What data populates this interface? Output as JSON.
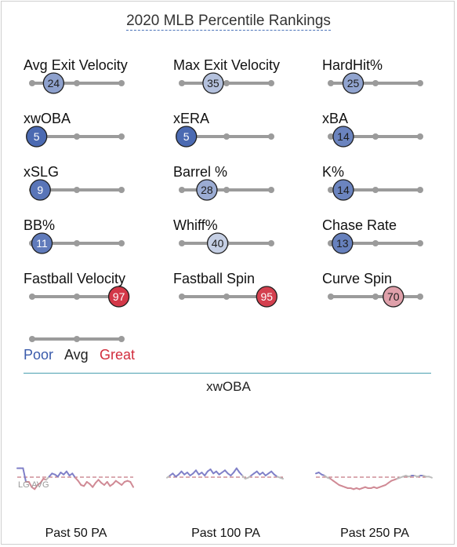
{
  "title": "2020 MLB Percentile Rankings",
  "colors": {
    "track": "#9b9b9b",
    "poor": "#3a5bab",
    "avg": "#222222",
    "great": "#d22d3d",
    "lg_avg_line": "#b45563",
    "spark_above": "#8080c8",
    "spark_below": "#d08a95",
    "spark_neutral": "#bdbdbd"
  },
  "chart_data": [
    {
      "type": "percentile-slider",
      "title": "2020 MLB Percentile Rankings",
      "scale": [
        0,
        100
      ],
      "metrics": [
        {
          "label": "Avg Exit Velocity",
          "value": 24
        },
        {
          "label": "Max Exit Velocity",
          "value": 35
        },
        {
          "label": "HardHit%",
          "value": 25
        },
        {
          "label": "xwOBA",
          "value": 5
        },
        {
          "label": "xERA",
          "value": 5
        },
        {
          "label": "xBA",
          "value": 14
        },
        {
          "label": "xSLG",
          "value": 9
        },
        {
          "label": "Barrel %",
          "value": 28
        },
        {
          "label": "K%",
          "value": 14
        },
        {
          "label": "BB%",
          "value": 11
        },
        {
          "label": "Whiff%",
          "value": 40
        },
        {
          "label": "Chase Rate",
          "value": 13
        },
        {
          "label": "Fastball Velocity",
          "value": 97
        },
        {
          "label": "Fastball Spin",
          "value": 95
        },
        {
          "label": "Curve Spin",
          "value": 70
        }
      ],
      "legend": {
        "poor": "Poor",
        "avg": "Avg",
        "great": "Great"
      }
    },
    {
      "type": "line",
      "title": "xwOBA",
      "reference_label": "LG AVG",
      "panels": [
        {
          "label": "Past 50 PA",
          "values": [
            0.4,
            0.4,
            0.4,
            0.27,
            0.27,
            0.22,
            0.2,
            0.24,
            0.26,
            0.3,
            0.29,
            0.32,
            0.35,
            0.34,
            0.32,
            0.36,
            0.34,
            0.37,
            0.33,
            0.35,
            0.31,
            0.28,
            0.24,
            0.23,
            0.27,
            0.25,
            0.22,
            0.26,
            0.29,
            0.26,
            0.24,
            0.27,
            0.23,
            0.25,
            0.28,
            0.26,
            0.24,
            0.27,
            0.28,
            0.27,
            0.22
          ]
        },
        {
          "label": "Past 100 PA",
          "values": [
            0.31,
            0.33,
            0.35,
            0.32,
            0.34,
            0.37,
            0.34,
            0.36,
            0.33,
            0.35,
            0.38,
            0.34,
            0.36,
            0.33,
            0.37,
            0.39,
            0.35,
            0.37,
            0.34,
            0.36,
            0.38,
            0.35,
            0.33,
            0.36,
            0.4,
            0.36,
            0.33,
            0.3,
            0.31,
            0.33,
            0.35,
            0.37,
            0.34,
            0.36,
            0.33,
            0.35,
            0.37,
            0.34,
            0.32,
            0.31,
            0.3
          ]
        },
        {
          "label": "Past 250 PA",
          "values": [
            0.35,
            0.36,
            0.34,
            0.33,
            0.31,
            0.3,
            0.28,
            0.26,
            0.24,
            0.23,
            0.22,
            0.21,
            0.21,
            0.2,
            0.21,
            0.2,
            0.21,
            0.22,
            0.21,
            0.21,
            0.22,
            0.21,
            0.22,
            0.23,
            0.24,
            0.26,
            0.28,
            0.29,
            0.3,
            0.31,
            0.32,
            0.33,
            0.32,
            0.33,
            0.33,
            0.32,
            0.33,
            0.33,
            0.32,
            0.32,
            0.31
          ]
        }
      ],
      "lg_avg": 0.315,
      "ylim": [
        0.15,
        0.45
      ]
    }
  ]
}
